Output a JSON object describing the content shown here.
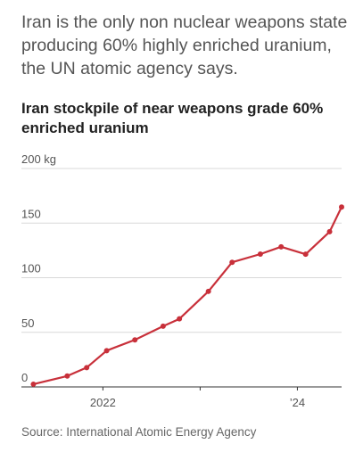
{
  "headline": "Iran is the only non nuclear weapons state producing 60% highly enriched uranium, the UN atomic agency says.",
  "source": "Source: International Atomic Energy Agency",
  "colors": {
    "line": "#c8303a",
    "grid": "#d8d8d8",
    "axis": "#333333"
  },
  "chart_data": {
    "type": "line",
    "title": "Iran stockpile of near weapons grade 60% enriched uranium",
    "xlabel": "",
    "ylabel": "",
    "ylim": [
      0,
      200
    ],
    "y_ticks": [
      {
        "value": 0,
        "label": "0"
      },
      {
        "value": 50,
        "label": "50"
      },
      {
        "value": 100,
        "label": "100"
      },
      {
        "value": 150,
        "label": "150"
      },
      {
        "value": 200,
        "label": "200 kg"
      }
    ],
    "xlim": [
      "2021-03-01",
      "2024-06-15"
    ],
    "x_ticks": [
      {
        "date": "2022-01-01",
        "label": "2022"
      },
      {
        "date": "2023-01-01",
        "label": ""
      },
      {
        "date": "2024-01-01",
        "label": "’24"
      }
    ],
    "series": [
      {
        "points": [
          {
            "x": "2021-04-15",
            "y": 2.5
          },
          {
            "x": "2021-08-20",
            "y": 10
          },
          {
            "x": "2021-11-01",
            "y": 17.7
          },
          {
            "x": "2022-01-15",
            "y": 33.2
          },
          {
            "x": "2022-05-01",
            "y": 43.1
          },
          {
            "x": "2022-08-15",
            "y": 55.6
          },
          {
            "x": "2022-10-15",
            "y": 62.3
          },
          {
            "x": "2023-02-01",
            "y": 87.5
          },
          {
            "x": "2023-05-01",
            "y": 114.1
          },
          {
            "x": "2023-08-15",
            "y": 121.6
          },
          {
            "x": "2023-11-01",
            "y": 128.3
          },
          {
            "x": "2024-02-01",
            "y": 121.5
          },
          {
            "x": "2024-05-01",
            "y": 142.1
          },
          {
            "x": "2024-06-15",
            "y": 164.7
          }
        ]
      }
    ]
  }
}
